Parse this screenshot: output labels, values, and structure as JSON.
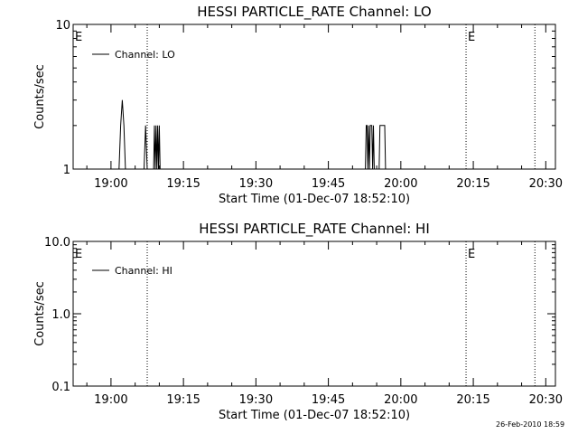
{
  "footer": {
    "stamp": "26-Feb-2010 18:59"
  },
  "chart_data": [
    {
      "type": "line",
      "title": "HESSI PARTICLE_RATE Channel: LO",
      "xlabel": "Start Time (01-Dec-07 18:52:10)",
      "ylabel": "Counts/sec",
      "yscale": "log",
      "xlim": [
        "18:52:10",
        "20:32:00"
      ],
      "ylim": [
        1,
        10
      ],
      "x_ticks": [
        "19:00",
        "19:15",
        "19:30",
        "19:45",
        "20:00",
        "20:15",
        "20:30"
      ],
      "y_ticks": [
        "1",
        "10"
      ],
      "legend": {
        "position": "top-left",
        "entries": [
          "Channel: LO"
        ]
      },
      "grid": false,
      "annotations": [
        {
          "time": "18:52:10",
          "text": "E"
        },
        {
          "time": "20:13:30",
          "text": "E"
        }
      ],
      "vlines": [
        "19:07:30",
        "20:13:30",
        "20:27:45"
      ],
      "series": [
        {
          "name": "Channel: LO",
          "x": [
            "19:01:40",
            "19:02:00",
            "19:02:20",
            "19:02:40",
            "19:03:00",
            "19:03:20",
            "19:06:50",
            "19:07:10",
            "19:07:30",
            "19:08:50",
            "19:09:00",
            "19:09:10",
            "19:09:20",
            "19:09:30",
            "19:09:40",
            "19:09:50",
            "19:10:00",
            "19:10:10",
            "19:10:20",
            "19:52:40",
            "19:52:50",
            "19:53:00",
            "19:53:10",
            "19:53:20",
            "19:53:30",
            "19:53:40",
            "19:54:00",
            "19:54:10",
            "19:54:20",
            "19:54:30",
            "19:54:40",
            "19:55:30",
            "19:55:40",
            "19:55:50",
            "19:56:00",
            "19:56:30",
            "19:56:40",
            "19:56:50",
            "19:57:00"
          ],
          "y": [
            1,
            2,
            3,
            2,
            1,
            1,
            1,
            2,
            1,
            1,
            2,
            1,
            2,
            1,
            2,
            1,
            2,
            1,
            1,
            1,
            2,
            2,
            1,
            2,
            1,
            2,
            2,
            1,
            2,
            1,
            1,
            1,
            2,
            2,
            2,
            2,
            2,
            1,
            1
          ]
        }
      ]
    },
    {
      "type": "line",
      "title": "HESSI PARTICLE_RATE Channel: HI",
      "xlabel": "Start Time (01-Dec-07 18:52:10)",
      "ylabel": "Counts/sec",
      "yscale": "log",
      "xlim": [
        "18:52:10",
        "20:32:00"
      ],
      "ylim": [
        0.1,
        10
      ],
      "x_ticks": [
        "19:00",
        "19:15",
        "19:30",
        "19:45",
        "20:00",
        "20:15",
        "20:30"
      ],
      "y_ticks": [
        "0.1",
        "1.0",
        "10.0"
      ],
      "legend": {
        "position": "top-left",
        "entries": [
          "Channel: HI"
        ]
      },
      "grid": false,
      "annotations": [
        {
          "time": "18:52:10",
          "text": "E"
        },
        {
          "time": "20:13:30",
          "text": "E"
        }
      ],
      "vlines": [
        "19:07:30",
        "20:13:30",
        "20:27:45"
      ],
      "series": [
        {
          "name": "Channel: HI",
          "x": [],
          "y": []
        }
      ]
    }
  ]
}
